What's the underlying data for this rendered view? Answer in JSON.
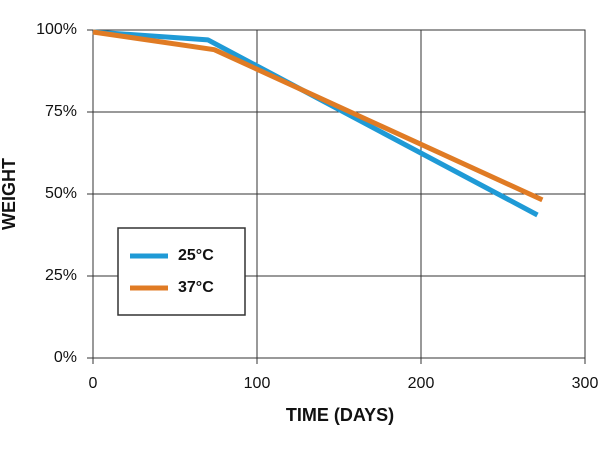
{
  "chart_data": {
    "type": "line",
    "x_label": "TIME (DAYS)",
    "y_label": "WEIGHT",
    "xlim": [
      0,
      300
    ],
    "ylim": [
      0,
      100
    ],
    "xticks": [
      0,
      100,
      200,
      300
    ],
    "yticks": [
      {
        "value": 0,
        "label": "0%"
      },
      {
        "value": 25,
        "label": "25%"
      },
      {
        "value": 50,
        "label": "50%"
      },
      {
        "value": 75,
        "label": "75%"
      },
      {
        "value": 100,
        "label": "100%"
      }
    ],
    "grid": true,
    "legend": "lower left",
    "series": [
      {
        "name": "25°C",
        "color": "#1f9ad6",
        "x": [
          0,
          70,
          271
        ],
        "values": [
          99.4,
          97,
          43.6
        ]
      },
      {
        "name": "37°C",
        "color": "#e07b24",
        "x": [
          0,
          74,
          274
        ],
        "values": [
          99.4,
          94,
          48.2
        ]
      }
    ]
  }
}
